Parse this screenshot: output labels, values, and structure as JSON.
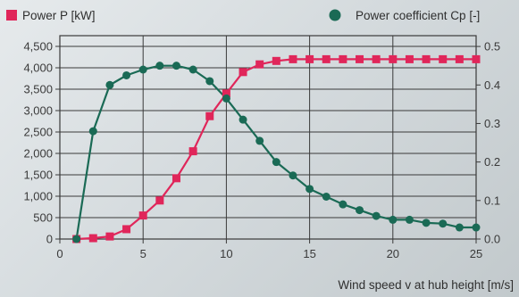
{
  "chart_data": {
    "type": "line",
    "title": "",
    "xlabel": "Wind speed v at hub height [m/s]",
    "xlim": [
      0,
      25
    ],
    "x_ticks": [
      "0",
      "5",
      "10",
      "15",
      "20",
      "25"
    ],
    "y_left": {
      "lim": [
        0,
        4750
      ],
      "ticks": [
        "0",
        "500",
        "1,000",
        "1,500",
        "2,000",
        "2,500",
        "3,000",
        "3,500",
        "4,000",
        "4,500"
      ]
    },
    "y_right": {
      "lim": [
        0,
        0.528
      ],
      "ticks": [
        "0.0",
        "0.1",
        "0.2",
        "0.3",
        "0.4",
        "0.5"
      ]
    },
    "grid": true,
    "legend_placement": "top",
    "series": [
      {
        "name": "Power P [kW]",
        "axis": "left",
        "color": "#e0265a",
        "marker": "square",
        "x": [
          1,
          2,
          3,
          4,
          5,
          6,
          7,
          8,
          9,
          10,
          11,
          12,
          13,
          14,
          15,
          16,
          17,
          18,
          19,
          20,
          21,
          22,
          23,
          24,
          25
        ],
        "y": [
          0,
          20,
          60,
          230,
          550,
          900,
          1420,
          2050,
          2870,
          3400,
          3900,
          4080,
          4160,
          4200,
          4200,
          4200,
          4200,
          4200,
          4200,
          4200,
          4200,
          4200,
          4200,
          4200,
          4200
        ]
      },
      {
        "name": "Power coefficient Cp [-]",
        "axis": "right",
        "color": "#1a6a55",
        "marker": "circle",
        "x": [
          1,
          2,
          3,
          4,
          5,
          6,
          7,
          8,
          9,
          10,
          11,
          12,
          13,
          14,
          15,
          16,
          17,
          18,
          19,
          20,
          21,
          22,
          23,
          24,
          25
        ],
        "y": [
          0.0,
          0.28,
          0.4,
          0.425,
          0.44,
          0.45,
          0.45,
          0.44,
          0.41,
          0.365,
          0.31,
          0.255,
          0.2,
          0.165,
          0.13,
          0.11,
          0.09,
          0.075,
          0.06,
          0.05,
          0.05,
          0.042,
          0.04,
          0.03,
          0.03
        ]
      }
    ]
  }
}
